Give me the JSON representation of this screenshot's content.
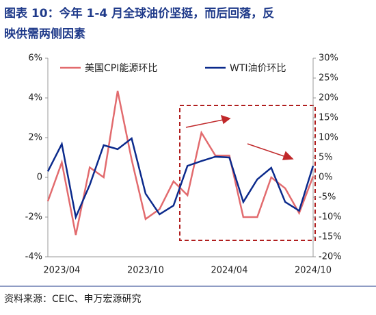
{
  "chart_data": {
    "type": "line",
    "title": "图表 10：今年 1-4 月全球油价坚挺，而后回落，反",
    "subtitle": "映供需两侧因素",
    "source": "资料来源：CEIC、申万宏源研究",
    "categories": [
      null,
      "2023/04",
      null,
      null,
      null,
      null,
      null,
      "2023/10",
      null,
      null,
      null,
      null,
      null,
      "2024/04",
      null,
      null,
      null,
      null,
      null,
      "2024/10"
    ],
    "series": [
      {
        "name": "美国CPI能源环比",
        "color": "#e26b6e",
        "axis": "y",
        "values": [
          -1.2,
          0.75,
          -2.9,
          0.5,
          0,
          4.35,
          0.9,
          -2.1,
          -1.6,
          -0.2,
          -0.9,
          2.25,
          1.1,
          1.1,
          -2.0,
          -2.0,
          0,
          -0.55,
          -1.8,
          0.05
        ]
      },
      {
        "name": "WTI油价环比",
        "color": "#0b2a8c",
        "axis": "y2",
        "values": [
          1.5,
          8.4,
          -10,
          -1.9,
          8.1,
          7.1,
          9.8,
          -4.1,
          -9.3,
          -7.1,
          2.9,
          4.1,
          5.2,
          5.0,
          -6.2,
          -0.5,
          2.4,
          -6.2,
          -8.4,
          2.9
        ]
      }
    ],
    "ylim": [
      -4,
      6
    ],
    "yticks": [
      {
        "value": -4,
        "label": "-4%"
      },
      {
        "value": -2,
        "label": "-2%"
      },
      {
        "value": 0,
        "label": "0"
      },
      {
        "value": 2,
        "label": "2%"
      },
      {
        "value": 4,
        "label": "4%"
      },
      {
        "value": 6,
        "label": "6%"
      }
    ],
    "y2lim": [
      -20,
      30
    ],
    "y2ticks": [
      {
        "value": -20,
        "label": "-20%"
      },
      {
        "value": -15,
        "label": "-15%"
      },
      {
        "value": -10,
        "label": "-10%"
      },
      {
        "value": -5,
        "label": "-5%"
      },
      {
        "value": 0,
        "label": "0%"
      },
      {
        "value": 5,
        "label": "5%"
      },
      {
        "value": 10,
        "label": "10%"
      },
      {
        "value": 15,
        "label": "15%"
      },
      {
        "value": 20,
        "label": "20%"
      },
      {
        "value": 25,
        "label": "25%"
      },
      {
        "value": 30,
        "label": "30%"
      }
    ],
    "legend": "top"
  }
}
